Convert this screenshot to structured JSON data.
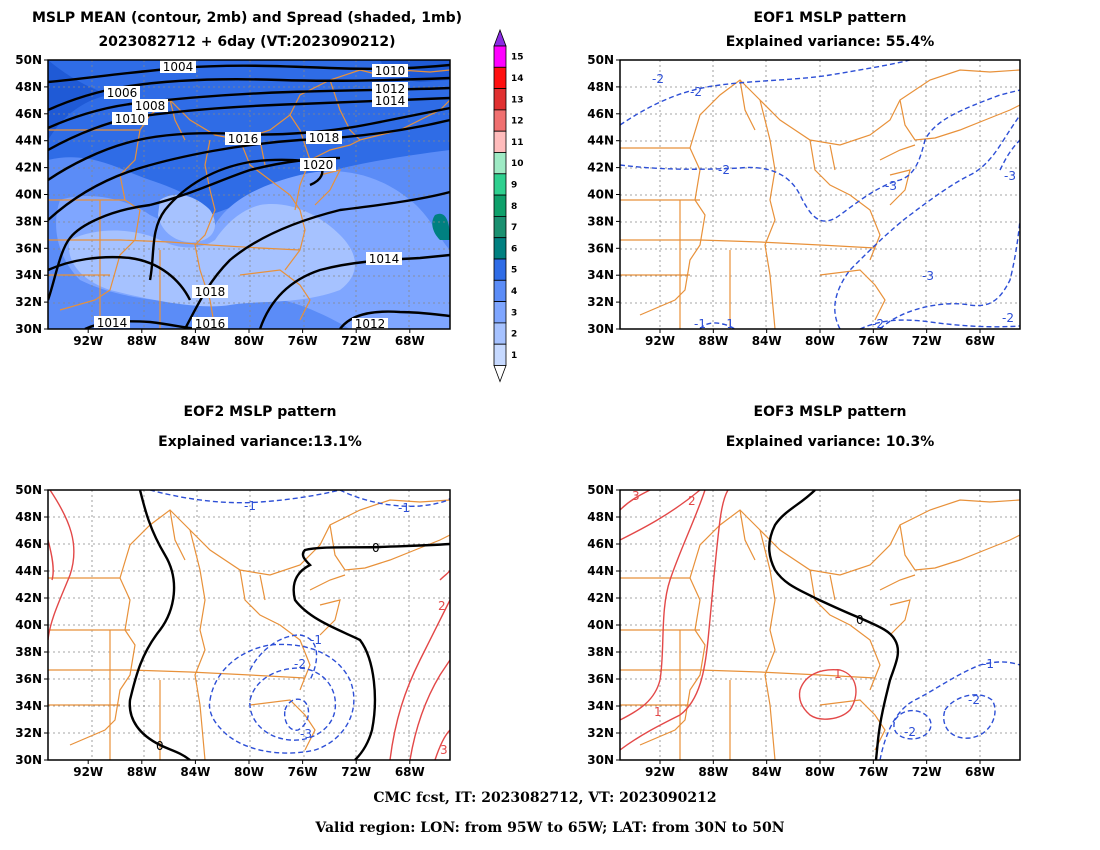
{
  "titles": {
    "p1_line1": "MSLP MEAN (contour, 2mb) and Spread (shaded, 1mb)",
    "p1_line2": "2023082712 + 6day (VT:2023090212)",
    "p2_line1": "EOF1 MSLP pattern",
    "p2_line2": "Explained variance: 55.4%",
    "p3_line1": "EOF2 MSLP pattern",
    "p3_line2": "Explained variance:13.1%",
    "p4_line1": "EOF3 MSLP pattern",
    "p4_line2": "Explained variance: 10.3%"
  },
  "footer": {
    "line1": "CMC fcst, IT: 2023082712, VT: 2023090212",
    "line2": "Valid region: LON: from 95W to 65W; LAT: from 30N to 50N"
  },
  "chart_data": [
    {
      "type": "contour",
      "panel": "mslp-mean",
      "title": "MSLP MEAN (contour, 2mb) and Spread (shaded, 1mb)",
      "subtitle": "2023082712 + 6day (VT:2023090212)",
      "xlim": [
        -95,
        -65
      ],
      "ylim": [
        30,
        50
      ],
      "x_ticks": [
        "92W",
        "88W",
        "84W",
        "80W",
        "76W",
        "72W",
        "68W"
      ],
      "y_ticks": [
        "30N",
        "32N",
        "34N",
        "36N",
        "38N",
        "40N",
        "42N",
        "44N",
        "46N",
        "48N",
        "50N"
      ],
      "contour_labels": [
        "1004",
        "1006",
        "1008",
        "1010",
        "1010",
        "1012",
        "1014",
        "1016",
        "1018",
        "1020",
        "1014",
        "1018",
        "1016",
        "1014",
        "1012"
      ],
      "colorbar": {
        "levels": [
          "1",
          "2",
          "3",
          "4",
          "5",
          "6",
          "7",
          "8",
          "9",
          "10",
          "11",
          "12",
          "13",
          "14",
          "15"
        ],
        "colors": [
          "#c6d9ff",
          "#a6c2ff",
          "#7fa6ff",
          "#5b8cf7",
          "#2f6ce6",
          "#008080",
          "#1a9070",
          "#0ea06a",
          "#2fd08f",
          "#9eeac4",
          "#ffbcbc",
          "#f07070",
          "#e03030",
          "#ff1010",
          "#ff00ff"
        ]
      }
    },
    {
      "type": "contour",
      "panel": "eof1",
      "title": "EOF1 MSLP pattern",
      "subtitle": "Explained variance: 55.4%",
      "xlim": [
        -95,
        -65
      ],
      "ylim": [
        30,
        50
      ],
      "contour_labels": [
        "-2",
        "-2",
        "-2",
        "-3",
        "-3",
        "-3",
        "-2",
        "-2",
        "-1",
        "-1"
      ]
    },
    {
      "type": "contour",
      "panel": "eof2",
      "title": "EOF2 MSLP pattern",
      "subtitle": "Explained variance:13.1%",
      "xlim": [
        -95,
        -65
      ],
      "ylim": [
        30,
        50
      ],
      "contour_labels": [
        "-1",
        "-1",
        "0",
        "-1",
        "-2",
        "-3",
        "0",
        "3",
        "2"
      ]
    },
    {
      "type": "contour",
      "panel": "eof3",
      "title": "EOF3 MSLP pattern",
      "subtitle": "Explained variance: 10.3%",
      "xlim": [
        -95,
        -65
      ],
      "ylim": [
        30,
        50
      ],
      "contour_labels": [
        "3",
        "2",
        "0",
        "1",
        "1",
        "-1",
        "-2",
        "-2"
      ]
    }
  ]
}
